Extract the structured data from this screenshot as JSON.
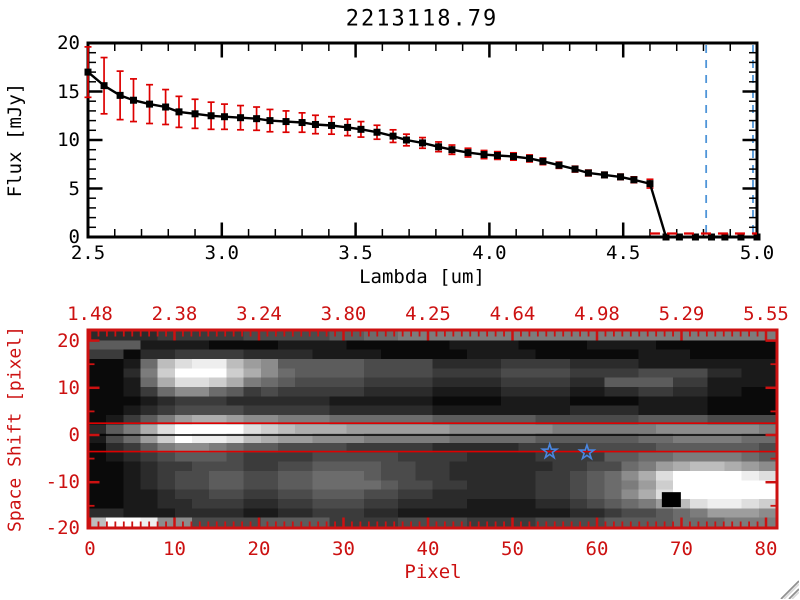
{
  "window": {
    "background": "#ffffff"
  },
  "chart_data": [
    {
      "type": "line",
      "title": "2213118.79",
      "xlabel": "Lambda [um]",
      "ylabel": "Flux [mJy]",
      "xlim": [
        2.5,
        5.0
      ],
      "ylim": [
        0,
        20
      ],
      "x_ticks": [
        "2.5",
        "3.0",
        "3.5",
        "4.0",
        "4.5",
        "5.0"
      ],
      "y_ticks": [
        "0",
        "5",
        "10",
        "15",
        "20"
      ],
      "line_color": "#000000",
      "marker": "filled-square",
      "error_color": "#dd0000",
      "guide_color": "#4f95d8",
      "vline_guides": [
        4.81,
        4.985
      ],
      "zero_dash_range": [
        4.6,
        5.0
      ],
      "x": [
        2.5,
        2.56,
        2.62,
        2.67,
        2.73,
        2.79,
        2.84,
        2.9,
        2.96,
        3.01,
        3.07,
        3.13,
        3.18,
        3.24,
        3.3,
        3.35,
        3.41,
        3.47,
        3.52,
        3.58,
        3.64,
        3.69,
        3.75,
        3.81,
        3.86,
        3.92,
        3.98,
        4.03,
        4.09,
        4.15,
        4.2,
        4.26,
        4.32,
        4.37,
        4.43,
        4.49,
        4.54,
        4.6,
        4.66,
        4.71,
        4.77,
        4.83,
        4.88,
        4.94,
        5.0
      ],
      "flux": [
        17.0,
        15.6,
        14.6,
        14.1,
        13.7,
        13.4,
        12.9,
        12.7,
        12.5,
        12.4,
        12.3,
        12.2,
        12.0,
        11.9,
        11.8,
        11.6,
        11.5,
        11.3,
        11.1,
        10.8,
        10.4,
        10.0,
        9.7,
        9.3,
        9.0,
        8.7,
        8.5,
        8.4,
        8.3,
        8.1,
        7.8,
        7.4,
        7.0,
        6.6,
        6.4,
        6.2,
        5.9,
        5.5,
        0,
        0,
        0,
        0,
        0,
        0,
        0
      ],
      "err": [
        2.6,
        2.9,
        2.5,
        2.2,
        2.0,
        1.8,
        1.6,
        1.5,
        1.4,
        1.3,
        1.25,
        1.2,
        1.15,
        1.1,
        1.0,
        0.95,
        0.9,
        0.85,
        0.8,
        0.72,
        0.65,
        0.6,
        0.55,
        0.5,
        0.48,
        0.45,
        0.42,
        0.4,
        0.38,
        0.36,
        0.34,
        0.32,
        0.3,
        0.3,
        0.28,
        0.28,
        0.3,
        0.45,
        0,
        0,
        0,
        0,
        0,
        0,
        0
      ]
    },
    {
      "type": "heatmap",
      "xlabel": "Pixel",
      "ylabel": "Space Shift [pixel]",
      "top_axis_ticklabels": [
        "1.48",
        "2.38",
        "3.24",
        "3.80",
        "4.25",
        "4.64",
        "4.98",
        "5.29",
        "5.55"
      ],
      "x_ticks": [
        "0",
        "10",
        "20",
        "30",
        "40",
        "50",
        "60",
        "70",
        "80"
      ],
      "y_ticks": [
        "20",
        "10",
        "0",
        "-10",
        "-20"
      ],
      "xlim": [
        0,
        80
      ],
      "ylim": [
        -20,
        22
      ],
      "axis_color": "#cc1111",
      "palette": "grayscale",
      "hlines": [
        {
          "y": 2.5,
          "color": "#dd0000"
        },
        {
          "y": -3.5,
          "color": "#dd0000"
        },
        {
          "y": 0,
          "color": "#000000"
        }
      ],
      "star_color": "#4a86e0",
      "star_markers": [
        {
          "x": 54.4,
          "y": -3.5
        },
        {
          "x": 58.8,
          "y": -3.7
        }
      ],
      "black_square_marker": {
        "x": 68.8,
        "y": -13.7
      },
      "rows_hex": [
        "2222333334444455667777777777777777777777",
        "5551111000011110000001111000011110000000",
        "3302233332222111100000111100000011100000",
        "0016bdeeb9855555444422223333222211111111",
        "0027cfffca865555444433334444333344442211",
        "0016addca7654444333322223333225555331111",
        "0013688653433333222211112222112233221100",
        "0001233322222211111100001111000011110000",
        "0012344443333322222211111111222211110000",
        "013579aa98877766666655555544444455554444",
        "257adffffdcbaaa9999998888887777778888887",
        "1469cfeedba99888777776666655555566777766",
        "0235788765544443333322222333344445555554",
        "0123455543333444443333222233335566777765",
        "0012334443344555544332222223344679abba98",
        "00123445544556665443322222334568adffffed",
        "001234455445566665443322223345679cffffff",
        "00112334433445554433222222334568adffffff",
        "0011223332233444332222111122345679bdeedc",
        "2211122221122333221111111111223445679998",
        "bffe884444555533334444333344445555666777"
      ]
    }
  ],
  "resize_grip": {
    "present": "true"
  }
}
